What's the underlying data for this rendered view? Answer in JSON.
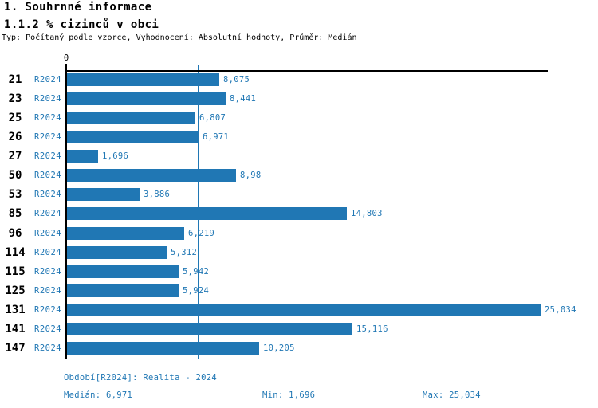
{
  "header": {
    "title1": "1. Souhrnné informace",
    "title2": "1.1.2 % cizinců v obci",
    "subtitle": "Typ: Počítaný podle vzorce, Vyhodnocení: Absolutní hodnoty, Průměr: Medián"
  },
  "chart_data": {
    "type": "bar",
    "orientation": "horizontal",
    "title": "1.1.2 % cizinců v obci",
    "categories": [
      "21",
      "23",
      "25",
      "26",
      "27",
      "50",
      "53",
      "85",
      "96",
      "114",
      "115",
      "125",
      "131",
      "141",
      "147"
    ],
    "series": [
      {
        "name": "R2024",
        "values": [
          8.075,
          8.441,
          6.807,
          6.971,
          1.696,
          8.98,
          3.886,
          14.803,
          6.219,
          5.312,
          5.942,
          5.924,
          25.034,
          15.116,
          10.205
        ],
        "value_labels": [
          "8,075",
          "8,441",
          "6,807",
          "6,971",
          "1,696",
          "8,98",
          "3,886",
          "14,803",
          "6,219",
          "5,312",
          "5,942",
          "5,924",
          "25,034",
          "15,116",
          "10,205"
        ]
      }
    ],
    "axis_zero_label": "0",
    "xlim": [
      0,
      25.4
    ],
    "median": 6.971,
    "grid": false,
    "legend_position": "none",
    "bar_color": "#2077B4",
    "text_color": "#2077B4",
    "median_line_color": "#2077B4"
  },
  "footer": {
    "period": "Období[R2024]: Realita - 2024",
    "median": "Medián: 6,971",
    "min": "Min: 1,696",
    "max": "Max: 25,034"
  }
}
